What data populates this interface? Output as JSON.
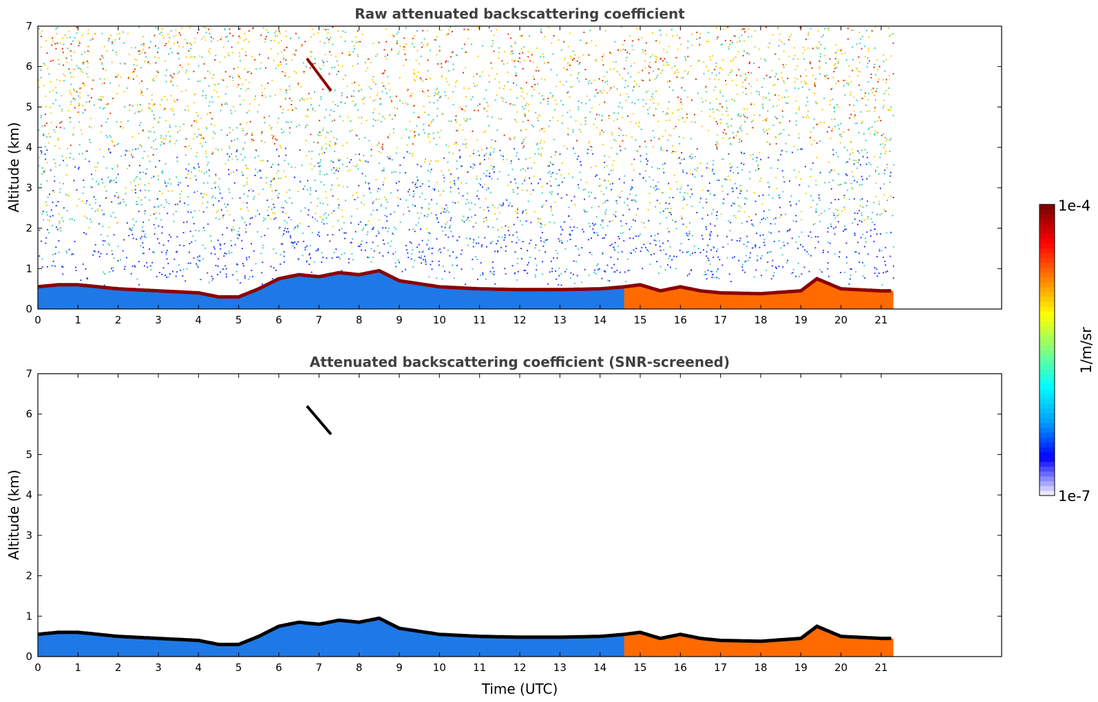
{
  "chart_data": [
    {
      "type": "heatmap",
      "title": "Raw attenuated backscattering coefficient",
      "xlabel": "",
      "ylabel": "Altitude (km)",
      "xlim": [
        0,
        24
      ],
      "ylim": [
        0,
        7
      ],
      "x_ticks": [
        "0",
        "1",
        "2",
        "3",
        "4",
        "5",
        "6",
        "7",
        "8",
        "9",
        "10",
        "11",
        "12",
        "13",
        "14",
        "15",
        "16",
        "17",
        "18",
        "19",
        "20",
        "21"
      ],
      "y_ticks": [
        "0",
        "1",
        "2",
        "3",
        "4",
        "5",
        "6",
        "7"
      ],
      "data_end_time": 21.3,
      "layer_top": {
        "x": [
          0,
          0.5,
          1,
          2,
          3,
          4,
          4.5,
          5,
          5.5,
          6,
          6.5,
          7,
          7.5,
          8,
          8.5,
          9,
          10,
          11,
          12,
          13,
          14,
          14.6,
          15,
          15.5,
          16,
          16.5,
          17,
          18,
          19,
          19.4,
          20,
          21,
          21.3
        ],
        "y": [
          0.55,
          0.6,
          0.6,
          0.5,
          0.45,
          0.4,
          0.3,
          0.3,
          0.5,
          0.75,
          0.85,
          0.8,
          0.9,
          0.85,
          0.95,
          0.7,
          0.55,
          0.5,
          0.48,
          0.48,
          0.5,
          0.55,
          0.6,
          0.45,
          0.55,
          0.45,
          0.4,
          0.38,
          0.45,
          0.75,
          0.5,
          0.45,
          0.45
        ]
      },
      "cloud_feature": {
        "x": [
          6.7,
          7.3
        ],
        "y": [
          6.2,
          5.4
        ]
      },
      "grid": false
    },
    {
      "type": "heatmap",
      "title": "Attenuated backscattering coefficient (SNR-screened)",
      "xlabel": "Time (UTC)",
      "ylabel": "Altitude (km)",
      "xlim": [
        0,
        24
      ],
      "ylim": [
        0,
        7
      ],
      "x_ticks": [
        "0",
        "1",
        "2",
        "3",
        "4",
        "5",
        "6",
        "7",
        "8",
        "9",
        "10",
        "11",
        "12",
        "13",
        "14",
        "15",
        "16",
        "17",
        "18",
        "19",
        "20",
        "21"
      ],
      "y_ticks": [
        "0",
        "1",
        "2",
        "3",
        "4",
        "5",
        "6",
        "7"
      ],
      "data_end_time": 21.3,
      "layer_top": {
        "x": [
          0,
          0.5,
          1,
          2,
          3,
          4,
          4.5,
          5,
          5.5,
          6,
          6.5,
          7,
          7.5,
          8,
          8.5,
          9,
          10,
          11,
          12,
          13,
          14,
          14.6,
          15,
          15.5,
          16,
          16.5,
          17,
          18,
          19,
          19.4,
          20,
          21,
          21.3
        ],
        "y": [
          0.55,
          0.6,
          0.6,
          0.5,
          0.45,
          0.4,
          0.3,
          0.3,
          0.5,
          0.75,
          0.85,
          0.8,
          0.9,
          0.85,
          0.95,
          0.7,
          0.55,
          0.5,
          0.48,
          0.48,
          0.5,
          0.55,
          0.6,
          0.45,
          0.55,
          0.45,
          0.4,
          0.38,
          0.45,
          0.75,
          0.5,
          0.45,
          0.45
        ]
      },
      "cloud_feature": {
        "x": [
          6.7,
          7.3
        ],
        "y": [
          6.2,
          5.5
        ]
      },
      "grid": false
    }
  ],
  "colorbar": {
    "label": "1/m/sr",
    "min_label": "1e-7",
    "max_label": "1e-4",
    "colormap": "jet",
    "colors": [
      "#e8e8ff",
      "#0000ff",
      "#00a0ff",
      "#00ffff",
      "#80ff80",
      "#ffff00",
      "#ff8000",
      "#ff0000",
      "#800000"
    ]
  },
  "colors": {
    "blue_layer": "#1e78e6",
    "black_edge": "#000000",
    "dark_red": "#8b0000",
    "afternoon_orange": "#ff6a00",
    "noise_low": "#2a3cff",
    "noise_mid": "#40d0c0",
    "noise_high": "#ffcc00",
    "noise_top": "#e03000"
  }
}
